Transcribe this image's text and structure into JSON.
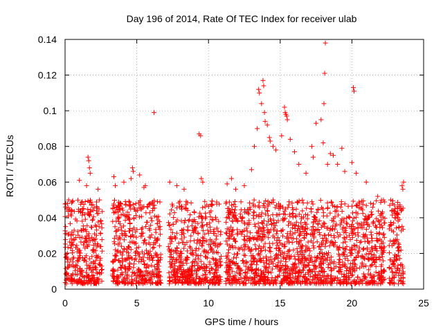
{
  "chart_data": {
    "type": "scatter",
    "title": "Day 196 of 2014, Rate Of TEC Index for receiver ulab",
    "xlabel": "GPS time / hours",
    "ylabel": "ROTI / TECUs",
    "xlim": [
      0,
      25
    ],
    "ylim": [
      0,
      0.14
    ],
    "xticks": [
      0,
      5,
      10,
      15,
      20,
      25
    ],
    "yticks": [
      0,
      0.02,
      0.04,
      0.06,
      0.08,
      0.1,
      0.12,
      0.14
    ],
    "xtick_labels": [
      "0",
      "5",
      "10",
      "15",
      "20",
      "25"
    ],
    "ytick_labels": [
      "0",
      "0.02",
      "0.04",
      "0.06",
      "0.08",
      "0.1",
      "0.12",
      "0.14"
    ],
    "grid": true,
    "marker": "+",
    "color": "#ff0000",
    "series": [
      {
        "name": "ROTI",
        "points": [
          [
            0.05,
            0.048
          ],
          [
            0.1,
            0.045
          ],
          [
            0.25,
            0.05
          ],
          [
            0.4,
            0.042
          ],
          [
            0.5,
            0.049
          ],
          [
            1.0,
            0.061
          ],
          [
            1.5,
            0.058
          ],
          [
            1.6,
            0.074
          ],
          [
            1.65,
            0.072
          ],
          [
            1.7,
            0.068
          ],
          [
            1.75,
            0.065
          ],
          [
            2.3,
            0.056
          ],
          [
            2.4,
            0.05
          ],
          [
            3.4,
            0.063
          ],
          [
            3.5,
            0.058
          ],
          [
            4.1,
            0.06
          ],
          [
            4.6,
            0.062
          ],
          [
            4.7,
            0.068
          ],
          [
            4.75,
            0.066
          ],
          [
            5.2,
            0.064
          ],
          [
            5.5,
            0.057
          ],
          [
            5.6,
            0.058
          ],
          [
            6.2,
            0.099
          ],
          [
            7.3,
            0.06
          ],
          [
            7.8,
            0.058
          ],
          [
            8.3,
            0.056
          ],
          [
            9.35,
            0.087
          ],
          [
            9.45,
            0.086
          ],
          [
            9.5,
            0.062
          ],
          [
            9.6,
            0.06
          ],
          [
            11.3,
            0.059
          ],
          [
            11.6,
            0.062
          ],
          [
            11.9,
            0.056
          ],
          [
            12.5,
            0.058
          ],
          [
            13.0,
            0.067
          ],
          [
            13.2,
            0.08
          ],
          [
            13.4,
            0.09
          ],
          [
            13.5,
            0.112
          ],
          [
            13.55,
            0.11
          ],
          [
            13.7,
            0.104
          ],
          [
            13.8,
            0.117
          ],
          [
            13.85,
            0.114
          ],
          [
            13.9,
            0.099
          ],
          [
            13.95,
            0.094
          ],
          [
            14.1,
            0.092
          ],
          [
            14.25,
            0.085
          ],
          [
            14.3,
            0.083
          ],
          [
            14.5,
            0.08
          ],
          [
            14.7,
            0.078
          ],
          [
            15.1,
            0.086
          ],
          [
            15.3,
            0.102
          ],
          [
            15.35,
            0.099
          ],
          [
            15.4,
            0.098
          ],
          [
            15.45,
            0.097
          ],
          [
            15.5,
            0.095
          ],
          [
            15.7,
            0.084
          ],
          [
            16.0,
            0.077
          ],
          [
            16.3,
            0.07
          ],
          [
            16.8,
            0.065
          ],
          [
            17.2,
            0.08
          ],
          [
            17.3,
            0.074
          ],
          [
            17.5,
            0.093
          ],
          [
            17.85,
            0.095
          ],
          [
            18.0,
            0.082
          ],
          [
            18.05,
            0.104
          ],
          [
            18.1,
            0.121
          ],
          [
            18.15,
            0.138
          ],
          [
            18.3,
            0.07
          ],
          [
            18.5,
            0.076
          ],
          [
            18.7,
            0.075
          ],
          [
            19.0,
            0.07
          ],
          [
            19.3,
            0.079
          ],
          [
            19.5,
            0.066
          ],
          [
            20.0,
            0.071
          ],
          [
            20.1,
            0.113
          ],
          [
            20.15,
            0.111
          ],
          [
            20.3,
            0.065
          ],
          [
            21.0,
            0.06
          ],
          [
            21.8,
            0.052
          ],
          [
            22.2,
            0.05
          ],
          [
            22.7,
            0.05
          ],
          [
            23.5,
            0.058
          ],
          [
            23.6,
            0.06
          ],
          [
            23.55,
            0.056
          ]
        ]
      }
    ],
    "dense_band": {
      "description": "Dense cluster of data points between 0.003 and 0.05 TECU across observation windows",
      "windows_hours": [
        [
          0,
          2.6
        ],
        [
          3.3,
          6.7
        ],
        [
          7.2,
          10.9
        ],
        [
          11.2,
          22.3
        ],
        [
          22.6,
          23.6
        ]
      ],
      "y_range": [
        0.003,
        0.05
      ]
    }
  }
}
